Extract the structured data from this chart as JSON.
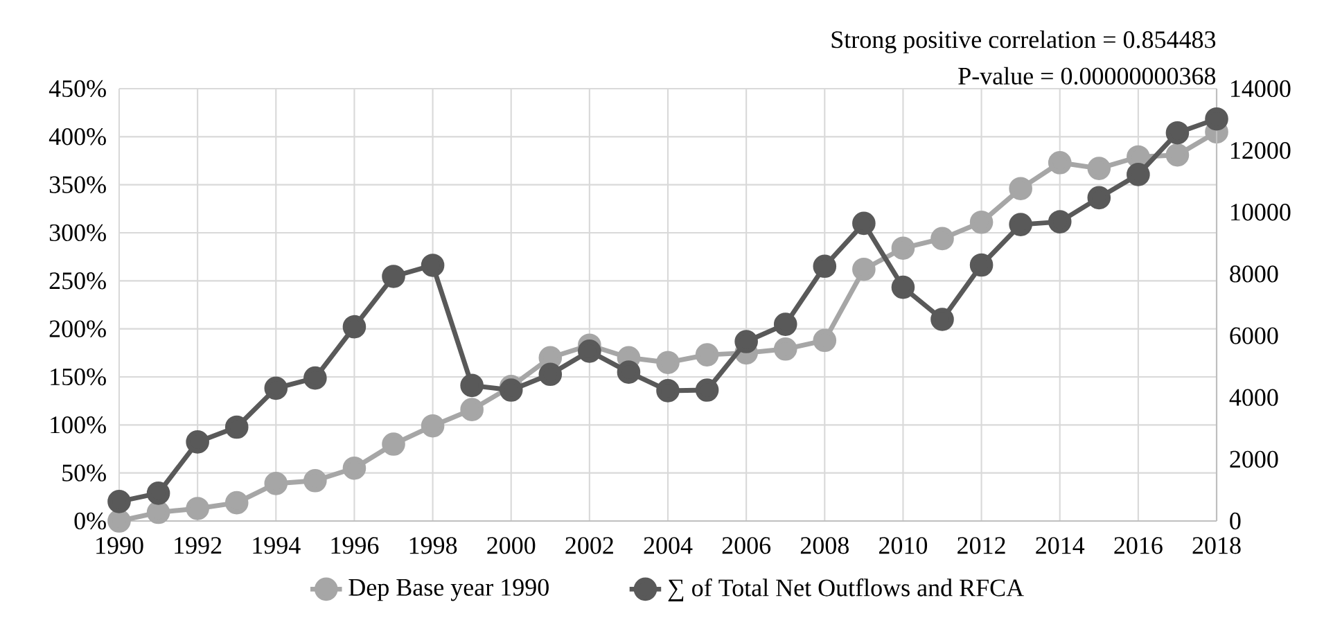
{
  "chart_data": {
    "type": "line",
    "annotations": [
      "Strong positive correlation = 0.854483",
      "P-value = 0.00000000368"
    ],
    "x": [
      1990,
      1991,
      1992,
      1993,
      1994,
      1995,
      1996,
      1997,
      1998,
      1999,
      2000,
      2001,
      2002,
      2003,
      2004,
      2005,
      2006,
      2007,
      2008,
      2009,
      2010,
      2011,
      2012,
      2013,
      2014,
      2015,
      2016,
      2017,
      2018
    ],
    "series": [
      {
        "name": "Dep Base year 1990",
        "color": "#a6a6a6",
        "values": [
          0,
          9,
          13,
          19,
          39,
          42,
          55,
          80,
          99,
          116,
          140,
          170,
          183,
          170,
          165,
          173,
          175,
          179,
          188,
          262,
          284,
          294,
          311,
          346,
          373,
          367,
          379,
          381,
          405
        ]
      },
      {
        "name": "∑ of Total Net Outflows  and RFCA",
        "color": "#595959",
        "axis": "y2",
        "values": [
          630,
          900,
          2560,
          3040,
          4300,
          4630,
          6290,
          7920,
          8280,
          4390,
          4240,
          4750,
          5500,
          4820,
          4220,
          4240,
          5810,
          6370,
          8250,
          9640,
          7570,
          6530,
          8290,
          9600,
          9690,
          10470,
          11220,
          12570,
          13020
        ]
      }
    ],
    "xlim": [
      1990,
      2018
    ],
    "xticks": [
      1990,
      1992,
      1994,
      1996,
      1998,
      2000,
      2002,
      2004,
      2006,
      2008,
      2010,
      2012,
      2014,
      2016,
      2018
    ],
    "ylim": [
      0,
      450
    ],
    "yticks": [
      {
        "value": 0,
        "label": "0%"
      },
      {
        "value": 50,
        "label": "50%"
      },
      {
        "value": 100,
        "label": "100%"
      },
      {
        "value": 150,
        "label": "150%"
      },
      {
        "value": 200,
        "label": "200%"
      },
      {
        "value": 250,
        "label": "250%"
      },
      {
        "value": 300,
        "label": "300%"
      },
      {
        "value": 350,
        "label": "350%"
      },
      {
        "value": 400,
        "label": "400%"
      },
      {
        "value": 450,
        "label": "450%"
      }
    ],
    "y2lim": [
      0,
      14000
    ],
    "y2ticks": [
      0,
      2000,
      4000,
      6000,
      8000,
      10000,
      12000,
      14000
    ],
    "grid": true,
    "legend": "bottom",
    "marker": "circle",
    "line_style": "solid"
  }
}
